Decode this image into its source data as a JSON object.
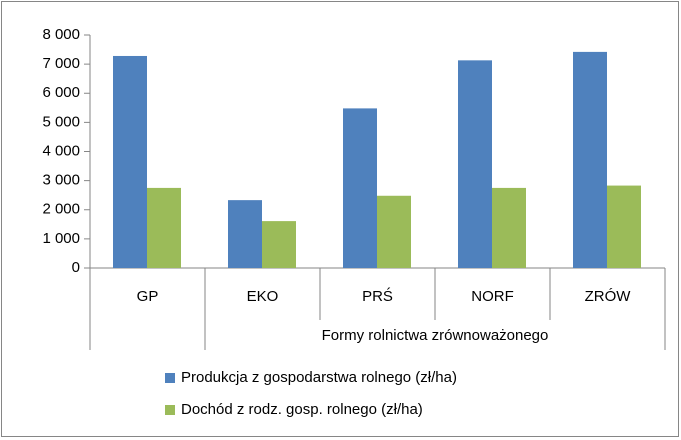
{
  "chart_data": {
    "type": "bar",
    "categories": [
      "GP",
      "EKO",
      "PRŚ",
      "NORF",
      "ZRÓW"
    ],
    "x_group_label": "Formy rolnictwa zrównoważonego",
    "series": [
      {
        "name": "Produkcja z gospodarstwa rolnego (zł/ha)",
        "color": "#4f81bd",
        "values": [
          7280,
          2330,
          5480,
          7130,
          7420
        ]
      },
      {
        "name": "Dochód z rodz. gosp. rolnego (zł/ha)",
        "color": "#9bbb59",
        "values": [
          2750,
          1610,
          2480,
          2750,
          2830
        ]
      }
    ],
    "ylim": [
      0,
      8000
    ],
    "yticks": [
      0,
      {
        "value": 1000,
        "label": "1 000"
      },
      {
        "value": 2000,
        "label": "2 000"
      },
      {
        "value": 3000,
        "label": "3 000"
      },
      {
        "value": 4000,
        "label": "4 000"
      },
      {
        "value": 5000,
        "label": "5 000"
      },
      {
        "value": 6000,
        "label": "6 000"
      },
      {
        "value": 7000,
        "label": "7 000"
      },
      {
        "value": 8000,
        "label": "8 000"
      }
    ],
    "grid": false,
    "legend": "bottom"
  }
}
